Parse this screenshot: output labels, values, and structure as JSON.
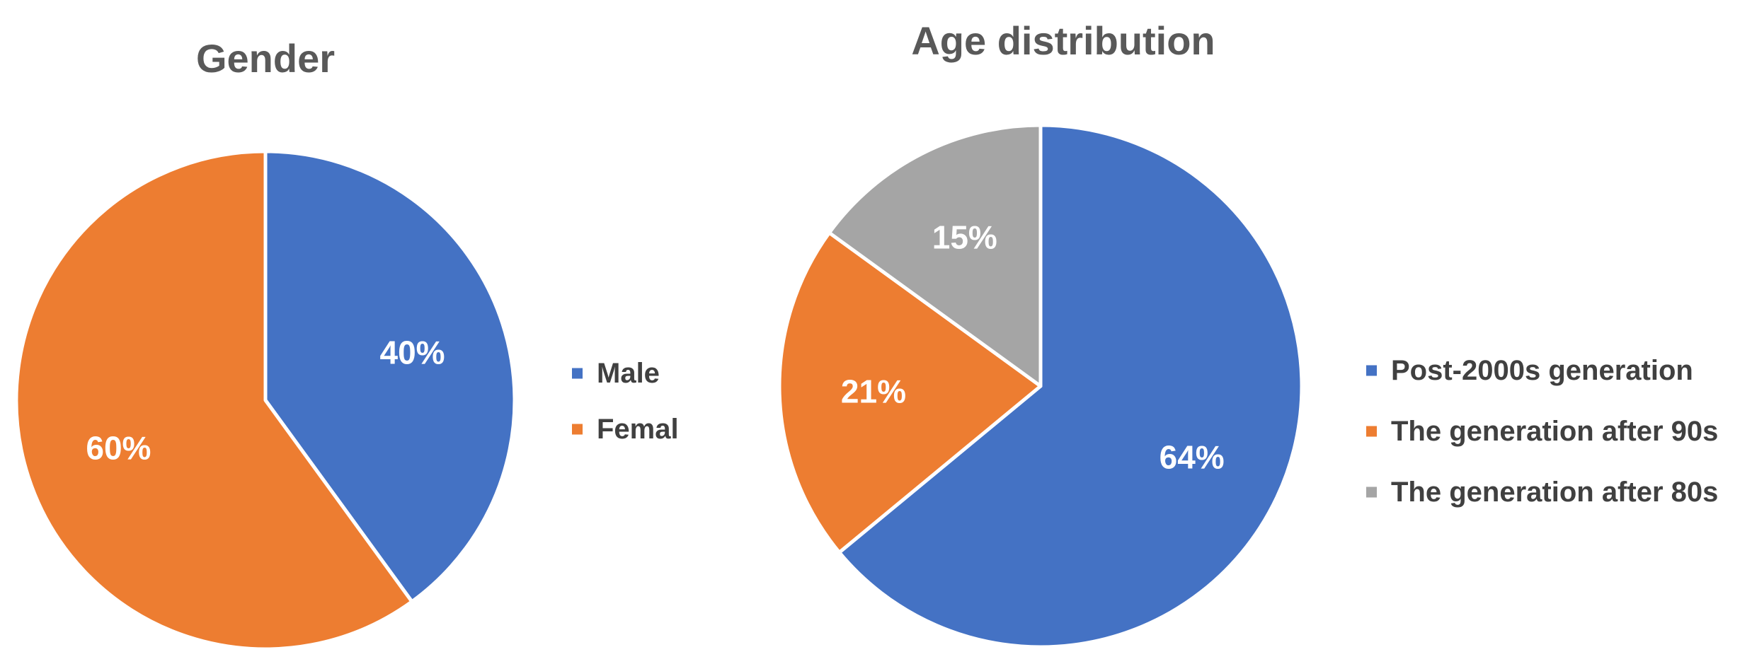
{
  "chart_data": [
    {
      "type": "pie",
      "title": "Gender",
      "categories": [
        "Male",
        "Femal"
      ],
      "values": [
        40,
        60
      ],
      "labels": [
        "40%",
        "60%"
      ],
      "colors": [
        "#4472C4",
        "#ED7D31"
      ],
      "legend": "right"
    },
    {
      "type": "pie",
      "title": "Age distribution",
      "categories": [
        "Post-2000s generation",
        "The generation after 90s",
        "The generation after 80s"
      ],
      "values": [
        64,
        21,
        15
      ],
      "labels": [
        "64%",
        "21%",
        "15%"
      ],
      "colors": [
        "#4472C4",
        "#ED7D31",
        "#A5A5A5"
      ],
      "legend": "right"
    }
  ]
}
